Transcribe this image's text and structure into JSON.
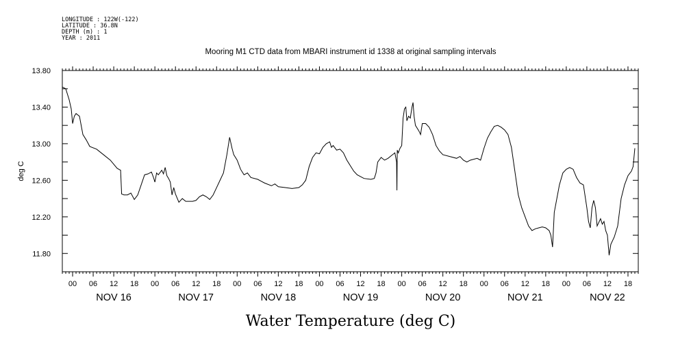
{
  "header": {
    "longitude": "LONGITUDE : 122W(-122)",
    "latitude": "LATITUDE : 36.8N",
    "depth": "DEPTH (m) : 1",
    "year": "YEAR : 2011"
  },
  "chart_data": {
    "type": "line",
    "title": "Mooring M1 CTD data from MBARI instrument id 1338 at original sampling intervals",
    "xlabel": "Water Temperature (deg C)",
    "ylabel": "deg C",
    "ylim": [
      11.6,
      13.8
    ],
    "yticks": [
      "11.80",
      "12.20",
      "12.60",
      "13.00",
      "13.40",
      "13.80"
    ],
    "xlim_hours": [
      -3,
      165
    ],
    "hour_labels": [
      "00",
      "06",
      "12",
      "18",
      "00",
      "06",
      "12",
      "18",
      "00",
      "06",
      "12",
      "18",
      "00",
      "06",
      "12",
      "18",
      "00",
      "06",
      "12",
      "18",
      "00",
      "06",
      "12",
      "18",
      "00",
      "06",
      "12",
      "18"
    ],
    "day_labels": [
      "NOV 16",
      "NOV 17",
      "NOV 18",
      "NOV 19",
      "NOV 20",
      "NOV 21",
      "NOV 22"
    ],
    "grid": false,
    "series": [
      {
        "values": [
          [
            -3.0,
            13.62
          ],
          [
            -2.0,
            13.6
          ],
          [
            -1.0,
            13.48
          ],
          [
            -0.4,
            13.38
          ],
          [
            0.0,
            13.22
          ],
          [
            0.5,
            13.3
          ],
          [
            1.0,
            13.33
          ],
          [
            2.0,
            13.3
          ],
          [
            2.6,
            13.18
          ],
          [
            3.0,
            13.1
          ],
          [
            4.0,
            13.04
          ],
          [
            5.0,
            12.97
          ],
          [
            7.0,
            12.94
          ],
          [
            9.0,
            12.88
          ],
          [
            11.0,
            12.82
          ],
          [
            13.0,
            12.73
          ],
          [
            14.0,
            12.71
          ],
          [
            14.3,
            12.45
          ],
          [
            15.0,
            12.44
          ],
          [
            16.0,
            12.44
          ],
          [
            17.0,
            12.46
          ],
          [
            18.0,
            12.39
          ],
          [
            19.0,
            12.44
          ],
          [
            20.0,
            12.55
          ],
          [
            21.0,
            12.66
          ],
          [
            22.0,
            12.67
          ],
          [
            23.0,
            12.69
          ],
          [
            23.6,
            12.63
          ],
          [
            24.0,
            12.58
          ],
          [
            24.5,
            12.68
          ],
          [
            25.0,
            12.66
          ],
          [
            26.0,
            12.71
          ],
          [
            26.5,
            12.67
          ],
          [
            27.0,
            12.74
          ],
          [
            27.5,
            12.65
          ],
          [
            28.0,
            12.62
          ],
          [
            28.5,
            12.58
          ],
          [
            29.0,
            12.44
          ],
          [
            29.5,
            12.52
          ],
          [
            30.0,
            12.45
          ],
          [
            31.0,
            12.36
          ],
          [
            32.0,
            12.4
          ],
          [
            33.0,
            12.37
          ],
          [
            35.0,
            12.37
          ],
          [
            36.0,
            12.38
          ],
          [
            37.0,
            12.42
          ],
          [
            38.0,
            12.44
          ],
          [
            39.0,
            12.42
          ],
          [
            40.0,
            12.39
          ],
          [
            41.0,
            12.44
          ],
          [
            42.0,
            12.52
          ],
          [
            43.0,
            12.6
          ],
          [
            44.0,
            12.68
          ],
          [
            45.0,
            12.88
          ],
          [
            45.8,
            13.07
          ],
          [
            46.5,
            12.95
          ],
          [
            47.0,
            12.88
          ],
          [
            48.0,
            12.82
          ],
          [
            49.0,
            12.72
          ],
          [
            50.0,
            12.66
          ],
          [
            51.0,
            12.68
          ],
          [
            52.0,
            12.63
          ],
          [
            54.0,
            12.61
          ],
          [
            56.0,
            12.57
          ],
          [
            58.0,
            12.54
          ],
          [
            59.0,
            12.56
          ],
          [
            60.0,
            12.53
          ],
          [
            62.0,
            12.52
          ],
          [
            64.0,
            12.51
          ],
          [
            66.0,
            12.52
          ],
          [
            67.0,
            12.55
          ],
          [
            68.0,
            12.6
          ],
          [
            69.0,
            12.75
          ],
          [
            70.0,
            12.85
          ],
          [
            71.0,
            12.9
          ],
          [
            72.0,
            12.89
          ],
          [
            73.0,
            12.96
          ],
          [
            74.0,
            13.0
          ],
          [
            75.0,
            13.02
          ],
          [
            75.5,
            12.96
          ],
          [
            76.0,
            12.98
          ],
          [
            77.0,
            12.93
          ],
          [
            78.0,
            12.94
          ],
          [
            79.0,
            12.9
          ],
          [
            80.0,
            12.82
          ],
          [
            81.0,
            12.76
          ],
          [
            82.0,
            12.7
          ],
          [
            83.0,
            12.66
          ],
          [
            85.0,
            12.62
          ],
          [
            87.0,
            12.61
          ],
          [
            88.0,
            12.62
          ],
          [
            88.5,
            12.68
          ],
          [
            89.0,
            12.8
          ],
          [
            90.0,
            12.85
          ],
          [
            91.0,
            12.82
          ],
          [
            92.0,
            12.84
          ],
          [
            93.0,
            12.87
          ],
          [
            94.0,
            12.9
          ],
          [
            94.5,
            12.8
          ],
          [
            94.6,
            12.49
          ],
          [
            94.7,
            12.93
          ],
          [
            95.0,
            12.9
          ],
          [
            95.5,
            12.95
          ],
          [
            96.0,
            12.98
          ],
          [
            96.4,
            13.28
          ],
          [
            96.8,
            13.38
          ],
          [
            97.2,
            13.4
          ],
          [
            97.5,
            13.25
          ],
          [
            98.0,
            13.3
          ],
          [
            98.5,
            13.28
          ],
          [
            99.0,
            13.4
          ],
          [
            99.3,
            13.45
          ],
          [
            99.6,
            13.3
          ],
          [
            100.0,
            13.2
          ],
          [
            101.0,
            13.14
          ],
          [
            101.5,
            13.1
          ],
          [
            102.0,
            13.22
          ],
          [
            103.0,
            13.22
          ],
          [
            104.0,
            13.18
          ],
          [
            105.0,
            13.1
          ],
          [
            106.0,
            12.98
          ],
          [
            107.0,
            12.92
          ],
          [
            108.0,
            12.88
          ],
          [
            110.0,
            12.86
          ],
          [
            112.0,
            12.84
          ],
          [
            113.0,
            12.86
          ],
          [
            114.0,
            12.82
          ],
          [
            115.0,
            12.8
          ],
          [
            116.0,
            12.82
          ],
          [
            118.0,
            12.84
          ],
          [
            119.0,
            12.82
          ],
          [
            120.0,
            12.95
          ],
          [
            121.0,
            13.06
          ],
          [
            122.0,
            13.13
          ],
          [
            123.0,
            13.19
          ],
          [
            124.0,
            13.2
          ],
          [
            125.0,
            13.18
          ],
          [
            126.0,
            13.15
          ],
          [
            127.0,
            13.1
          ],
          [
            128.0,
            12.96
          ],
          [
            129.0,
            12.7
          ],
          [
            130.0,
            12.44
          ],
          [
            131.0,
            12.3
          ],
          [
            132.0,
            12.2
          ],
          [
            133.0,
            12.1
          ],
          [
            134.0,
            12.05
          ],
          [
            135.0,
            12.07
          ],
          [
            136.0,
            12.08
          ],
          [
            137.0,
            12.09
          ],
          [
            138.0,
            12.08
          ],
          [
            139.0,
            12.05
          ],
          [
            139.5,
            12.0
          ],
          [
            140.0,
            11.87
          ],
          [
            140.5,
            12.25
          ],
          [
            141.0,
            12.35
          ],
          [
            142.0,
            12.55
          ],
          [
            143.0,
            12.68
          ],
          [
            144.0,
            12.72
          ],
          [
            145.0,
            12.74
          ],
          [
            146.0,
            12.72
          ],
          [
            147.0,
            12.63
          ],
          [
            148.0,
            12.57
          ],
          [
            149.0,
            12.55
          ],
          [
            150.0,
            12.3
          ],
          [
            150.5,
            12.15
          ],
          [
            151.0,
            12.08
          ],
          [
            151.5,
            12.3
          ],
          [
            152.0,
            12.38
          ],
          [
            152.5,
            12.3
          ],
          [
            153.0,
            12.1
          ],
          [
            154.0,
            12.18
          ],
          [
            154.5,
            12.12
          ],
          [
            155.0,
            12.15
          ],
          [
            155.5,
            12.05
          ],
          [
            156.0,
            12.0
          ],
          [
            156.5,
            11.78
          ],
          [
            157.0,
            11.9
          ],
          [
            158.0,
            11.98
          ],
          [
            159.0,
            12.1
          ],
          [
            160.0,
            12.4
          ],
          [
            161.0,
            12.55
          ],
          [
            162.0,
            12.65
          ],
          [
            163.0,
            12.7
          ],
          [
            163.5,
            12.75
          ],
          [
            164.0,
            12.95
          ]
        ]
      }
    ]
  }
}
